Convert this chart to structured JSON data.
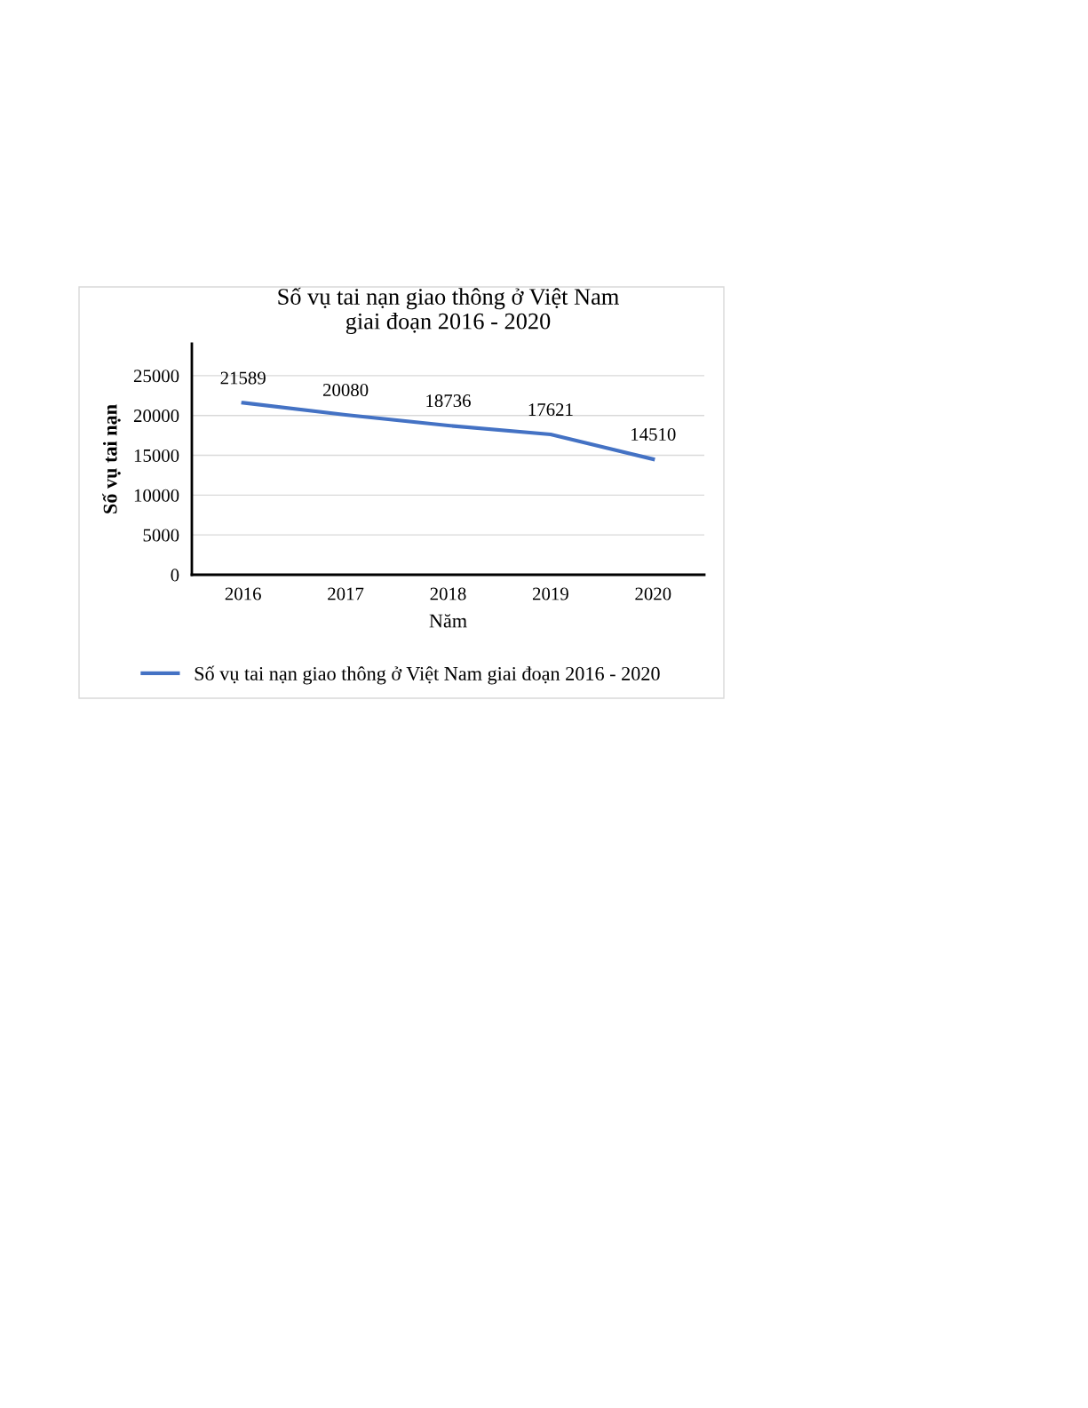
{
  "chart_data": {
    "type": "line",
    "title": "Số vụ tai nạn giao thông ở Việt Nam\ngiai đoạn 2016 - 2020",
    "xlabel": "Năm",
    "ylabel": "Số vụ tai nạn",
    "categories": [
      "2016",
      "2017",
      "2018",
      "2019",
      "2020"
    ],
    "series": [
      {
        "name": "Số vụ tai nạn giao thông ở Việt Nam giai đoạn 2016 - 2020",
        "color": "#4472c4",
        "values": [
          21589,
          20080,
          18736,
          17621,
          14510
        ]
      }
    ],
    "ylim": [
      0,
      29000
    ],
    "yticks": [
      0,
      5000,
      10000,
      15000,
      20000,
      25000
    ],
    "grid": "y",
    "legend": "bottom",
    "data_labels": true,
    "marker": "none",
    "line_style": "solid"
  }
}
